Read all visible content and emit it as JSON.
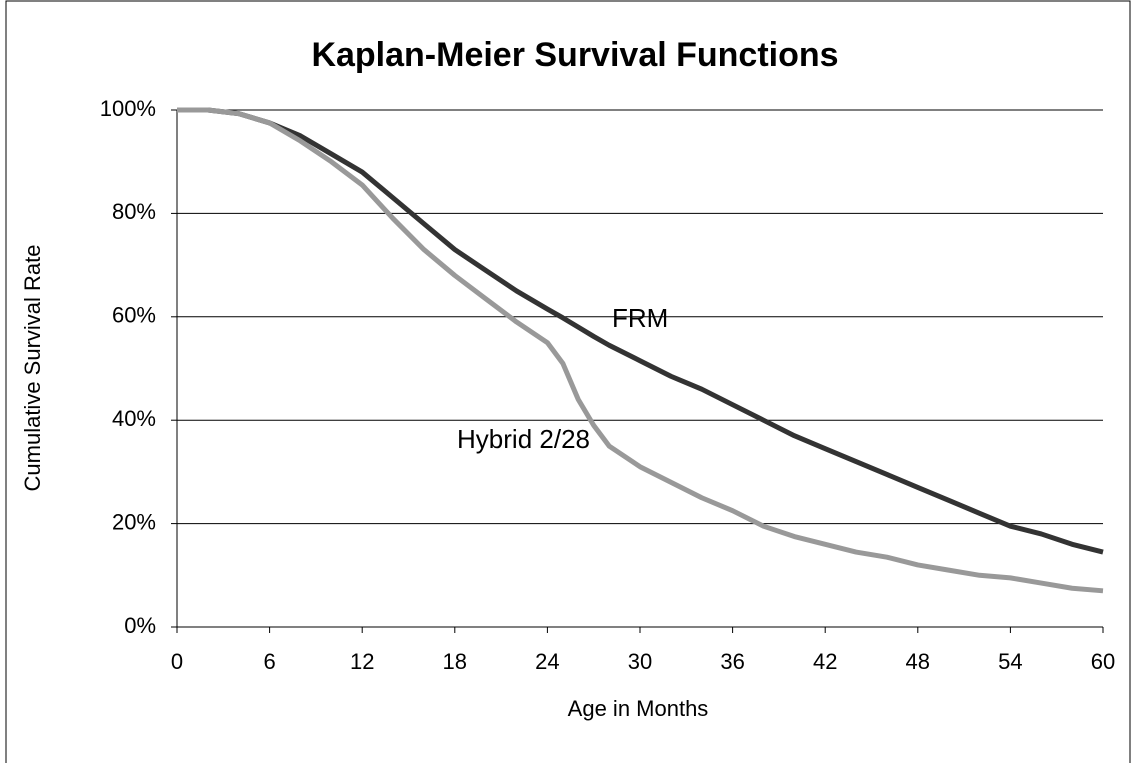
{
  "chart_data": {
    "type": "line",
    "title": "Kaplan-Meier Survival Functions",
    "x_label": "Age in Months",
    "y_label": "Cumulative Survival Rate",
    "x": [
      0,
      2,
      4,
      6,
      8,
      10,
      12,
      14,
      16,
      18,
      20,
      22,
      24,
      25,
      26,
      27,
      28,
      30,
      32,
      34,
      36,
      38,
      40,
      42,
      44,
      46,
      48,
      50,
      52,
      54,
      56,
      58,
      60
    ],
    "series": [
      {
        "name": "FRM",
        "color": "#333333",
        "values": [
          100,
          100,
          99.3,
          97.5,
          95,
          91.5,
          88,
          83,
          78,
          73,
          69,
          65,
          61.5,
          59.8,
          58,
          56.2,
          54.5,
          51.5,
          48.5,
          46,
          43,
          40,
          37,
          34.5,
          32,
          29.5,
          27,
          24.5,
          22,
          19.5,
          18,
          16,
          14.5
        ]
      },
      {
        "name": "Hybrid 2/28",
        "color": "#999999",
        "values": [
          100,
          100,
          99.3,
          97.5,
          94,
          90,
          85.5,
          79,
          73,
          68,
          63.5,
          59,
          55,
          51,
          44,
          39,
          35,
          31,
          28,
          25,
          22.5,
          19.5,
          17.5,
          16,
          14.5,
          13.5,
          12,
          11,
          10,
          9.5,
          8.5,
          7.5,
          7
        ]
      }
    ],
    "xlim": [
      0,
      60
    ],
    "xticks": [
      0,
      6,
      12,
      18,
      24,
      30,
      36,
      42,
      48,
      54,
      60
    ],
    "ylim": [
      0,
      100
    ],
    "yticks": [
      {
        "value": 0,
        "label": "0%"
      },
      {
        "value": 20,
        "label": "20%"
      },
      {
        "value": 40,
        "label": "40%"
      },
      {
        "value": 60,
        "label": "60%"
      },
      {
        "value": 80,
        "label": "80%"
      },
      {
        "value": 100,
        "label": "100%"
      }
    ],
    "grid": true
  }
}
